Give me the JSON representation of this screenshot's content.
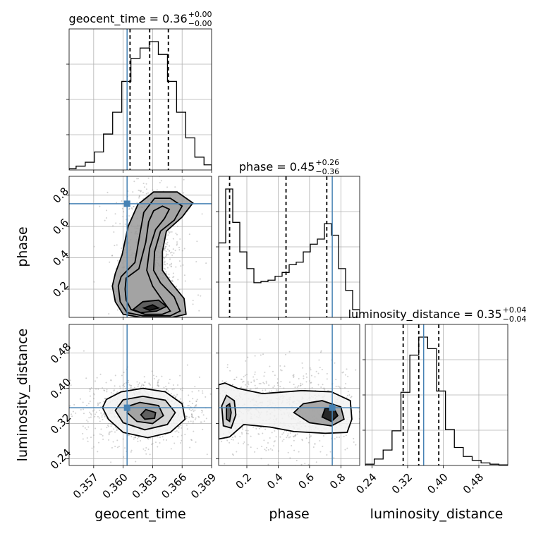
{
  "chart_data": {
    "type": "corner",
    "grid": true,
    "parameters": [
      "geocent_time",
      "phase",
      "luminosity_distance"
    ],
    "truth_color": "#4682b4",
    "axes": {
      "geocent_time": {
        "range": [
          0.3545,
          0.369
        ],
        "ticks": [
          0.357,
          0.36,
          0.363,
          0.366,
          0.369
        ],
        "tick_labels": [
          "0.357",
          "0.360",
          "0.363",
          "0.366",
          "0.369"
        ]
      },
      "phase": {
        "range": [
          0.02,
          0.92
        ],
        "ticks": [
          0.2,
          0.4,
          0.6,
          0.8
        ],
        "tick_labels": [
          "0.2",
          "0.4",
          "0.6",
          "0.8"
        ]
      },
      "luminosity_distance": {
        "range": [
          0.225,
          0.545
        ],
        "ticks": [
          0.24,
          0.32,
          0.4,
          0.48
        ],
        "tick_labels": [
          "0.24",
          "0.32",
          "0.40",
          "0.48"
        ]
      }
    },
    "truths": {
      "geocent_time": 0.3604,
      "phase": 0.745,
      "luminosity_distance": 0.356
    },
    "quantiles": {
      "geocent_time": [
        0.3607,
        0.3627,
        0.3646
      ],
      "phase": [
        0.09,
        0.45,
        0.71
      ],
      "luminosity_distance": [
        0.31,
        0.345,
        0.39
      ]
    },
    "titles": [
      {
        "param": "geocent_time",
        "main": "geocent_time = 0.36",
        "plus": "+0.00",
        "minus": "−0.00"
      },
      {
        "param": "phase",
        "main": "phase = 0.45",
        "plus": "+0.26",
        "minus": "−0.36"
      },
      {
        "param": "luminosity_distance",
        "main": "luminosity_distance = 0.35",
        "plus": "+0.04",
        "minus": "−0.04"
      }
    ],
    "histograms": {
      "geocent_time": {
        "edges": [
          0.3545,
          0.35521,
          0.35614,
          0.35707,
          0.358,
          0.35893,
          0.35986,
          0.36079,
          0.36172,
          0.36265,
          0.36358,
          0.36451,
          0.36544,
          0.36637,
          0.3673,
          0.36823,
          0.369
        ],
        "counts": [
          0.01,
          0.03,
          0.06,
          0.14,
          0.28,
          0.45,
          0.69,
          0.87,
          0.95,
          1.0,
          0.9,
          0.69,
          0.45,
          0.25,
          0.1,
          0.04
        ]
      },
      "phase": {
        "edges": [
          0.02,
          0.065,
          0.11,
          0.155,
          0.2,
          0.245,
          0.29,
          0.335,
          0.38,
          0.425,
          0.47,
          0.515,
          0.56,
          0.605,
          0.65,
          0.695,
          0.74,
          0.785,
          0.83,
          0.875,
          0.92
        ],
        "counts": [
          0.58,
          1.0,
          0.74,
          0.51,
          0.38,
          0.27,
          0.28,
          0.29,
          0.32,
          0.35,
          0.41,
          0.43,
          0.51,
          0.57,
          0.61,
          0.73,
          0.64,
          0.38,
          0.21,
          0.06
        ]
      },
      "luminosity_distance": {
        "edges": [
          0.225,
          0.245,
          0.265,
          0.285,
          0.305,
          0.325,
          0.345,
          0.365,
          0.385,
          0.405,
          0.425,
          0.445,
          0.465,
          0.485,
          0.505,
          0.525,
          0.545
        ],
        "counts": [
          0.01,
          0.05,
          0.12,
          0.27,
          0.57,
          0.86,
          1.0,
          0.91,
          0.58,
          0.28,
          0.14,
          0.07,
          0.04,
          0.02,
          0.01,
          0.005
        ]
      }
    },
    "panels_2d": [
      {
        "x": "geocent_time",
        "y": "phase",
        "contours": [
          [
            [
              0.3603,
              0.27
            ],
            [
              0.3616,
              0.33
            ],
            [
              0.3623,
              0.5
            ],
            [
              0.3626,
              0.63
            ],
            [
              0.3631,
              0.7
            ],
            [
              0.364,
              0.73
            ],
            [
              0.3647,
              0.71
            ],
            [
              0.3642,
              0.65
            ],
            [
              0.3633,
              0.58
            ],
            [
              0.3627,
              0.46
            ],
            [
              0.3624,
              0.32
            ],
            [
              0.363,
              0.22
            ],
            [
              0.364,
              0.13
            ],
            [
              0.3648,
              0.06
            ],
            [
              0.364,
              0.04
            ],
            [
              0.3622,
              0.04
            ],
            [
              0.3608,
              0.07
            ],
            [
              0.3603,
              0.13
            ],
            [
              0.3602,
              0.2
            ]
          ],
          [
            [
              0.3598,
              0.28
            ],
            [
              0.3612,
              0.37
            ],
            [
              0.3617,
              0.55
            ],
            [
              0.3621,
              0.69
            ],
            [
              0.3632,
              0.78
            ],
            [
              0.3648,
              0.78
            ],
            [
              0.366,
              0.73
            ],
            [
              0.3652,
              0.64
            ],
            [
              0.3638,
              0.57
            ],
            [
              0.3632,
              0.44
            ],
            [
              0.3631,
              0.32
            ],
            [
              0.3638,
              0.24
            ],
            [
              0.3652,
              0.15
            ],
            [
              0.3658,
              0.06
            ],
            [
              0.3648,
              0.03
            ],
            [
              0.362,
              0.03
            ],
            [
              0.3604,
              0.05
            ],
            [
              0.3597,
              0.12
            ],
            [
              0.3595,
              0.22
            ]
          ],
          [
            [
              0.3592,
              0.3
            ],
            [
              0.3599,
              0.42
            ],
            [
              0.3605,
              0.6
            ],
            [
              0.3615,
              0.74
            ],
            [
              0.3631,
              0.82
            ],
            [
              0.3655,
              0.82
            ],
            [
              0.3671,
              0.75
            ],
            [
              0.366,
              0.66
            ],
            [
              0.3644,
              0.57
            ],
            [
              0.364,
              0.44
            ],
            [
              0.364,
              0.32
            ],
            [
              0.3649,
              0.24
            ],
            [
              0.3662,
              0.14
            ],
            [
              0.3664,
              0.04
            ],
            [
              0.365,
              0.02
            ],
            [
              0.3618,
              0.02
            ],
            [
              0.36,
              0.04
            ],
            [
              0.3592,
              0.12
            ],
            [
              0.3589,
              0.22
            ]
          ],
          [
            [
              0.361,
              0.07
            ],
            [
              0.362,
              0.12
            ],
            [
              0.3636,
              0.13
            ],
            [
              0.3644,
              0.09
            ],
            [
              0.3634,
              0.06
            ],
            [
              0.3618,
              0.05
            ]
          ],
          [
            [
              0.3621,
              0.08
            ],
            [
              0.363,
              0.1
            ],
            [
              0.3636,
              0.08
            ],
            [
              0.3627,
              0.065
            ]
          ]
        ]
      },
      {
        "x": "geocent_time",
        "y": "luminosity_distance",
        "contours": [
          [
            [
              0.3579,
              0.356
            ],
            [
              0.3585,
              0.33
            ],
            [
              0.36,
              0.3
            ],
            [
              0.3625,
              0.288
            ],
            [
              0.3648,
              0.3
            ],
            [
              0.3663,
              0.33
            ],
            [
              0.366,
              0.365
            ],
            [
              0.3643,
              0.392
            ],
            [
              0.362,
              0.4
            ],
            [
              0.3598,
              0.392
            ],
            [
              0.3583,
              0.375
            ]
          ],
          [
            [
              0.3592,
              0.35
            ],
            [
              0.36,
              0.322
            ],
            [
              0.3622,
              0.306
            ],
            [
              0.3645,
              0.318
            ],
            [
              0.3653,
              0.345
            ],
            [
              0.3643,
              0.373
            ],
            [
              0.362,
              0.382
            ],
            [
              0.36,
              0.374
            ]
          ],
          [
            [
              0.3604,
              0.345
            ],
            [
              0.3614,
              0.325
            ],
            [
              0.363,
              0.32
            ],
            [
              0.3641,
              0.338
            ],
            [
              0.3636,
              0.361
            ],
            [
              0.3617,
              0.368
            ],
            [
              0.3606,
              0.36
            ]
          ],
          [
            [
              0.3618,
              0.34
            ],
            [
              0.3622,
              0.33
            ],
            [
              0.3632,
              0.332
            ],
            [
              0.3633,
              0.345
            ],
            [
              0.3623,
              0.352
            ]
          ]
        ]
      },
      {
        "x": "phase",
        "y": "luminosity_distance",
        "contours": [
          [
            [
              0.02,
              0.285
            ],
            [
              0.09,
              0.29
            ],
            [
              0.18,
              0.318
            ],
            [
              0.35,
              0.312
            ],
            [
              0.5,
              0.302
            ],
            [
              0.7,
              0.298
            ],
            [
              0.84,
              0.3
            ],
            [
              0.87,
              0.33
            ],
            [
              0.86,
              0.372
            ],
            [
              0.74,
              0.392
            ],
            [
              0.55,
              0.395
            ],
            [
              0.3,
              0.388
            ],
            [
              0.14,
              0.4
            ],
            [
              0.06,
              0.412
            ],
            [
              0.02,
              0.408
            ]
          ],
          [
            [
              0.05,
              0.315
            ],
            [
              0.1,
              0.31
            ],
            [
              0.13,
              0.34
            ],
            [
              0.12,
              0.372
            ],
            [
              0.07,
              0.384
            ],
            [
              0.04,
              0.36
            ]
          ],
          [
            [
              0.5,
              0.345
            ],
            [
              0.6,
              0.322
            ],
            [
              0.74,
              0.315
            ],
            [
              0.82,
              0.33
            ],
            [
              0.8,
              0.358
            ],
            [
              0.68,
              0.372
            ],
            [
              0.56,
              0.365
            ]
          ],
          [
            [
              0.07,
              0.33
            ],
            [
              0.09,
              0.325
            ],
            [
              0.1,
              0.345
            ],
            [
              0.09,
              0.365
            ],
            [
              0.07,
              0.36
            ]
          ],
          [
            [
              0.68,
              0.335
            ],
            [
              0.74,
              0.325
            ],
            [
              0.78,
              0.338
            ],
            [
              0.76,
              0.352
            ],
            [
              0.7,
              0.355
            ]
          ]
        ]
      }
    ]
  }
}
